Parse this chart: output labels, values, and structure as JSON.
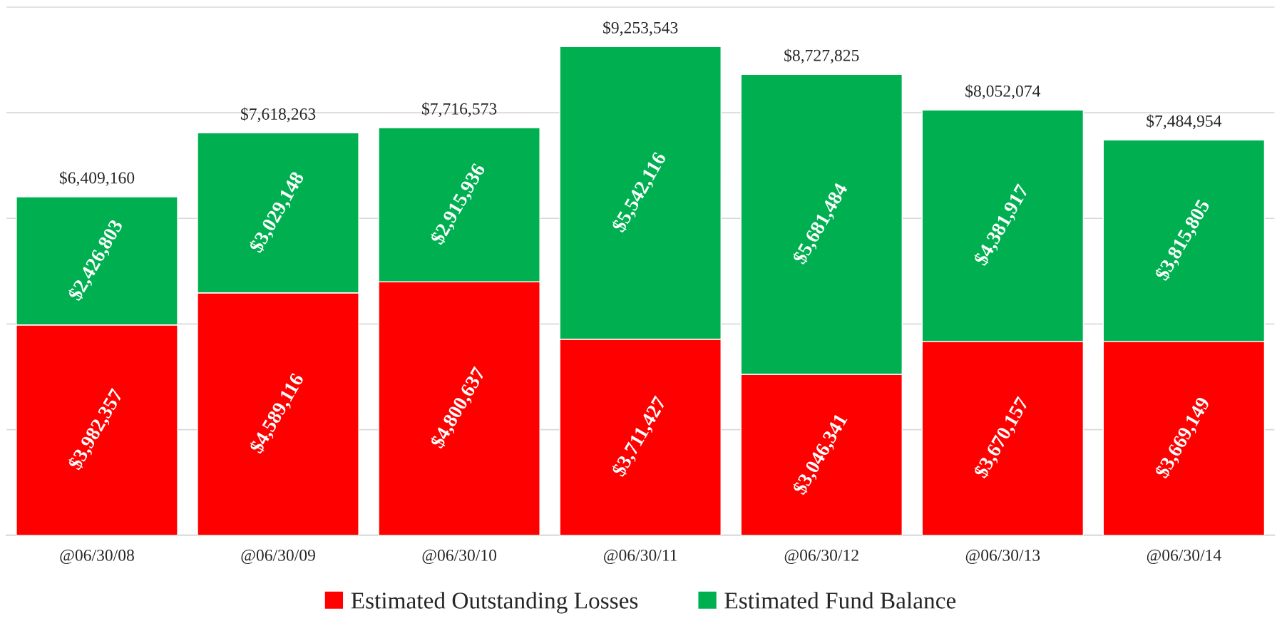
{
  "chart_data": {
    "type": "bar",
    "stacked": true,
    "categories": [
      "@06/30/08",
      "@06/30/09",
      "@06/30/10",
      "@06/30/11",
      "@06/30/12",
      "@06/30/13",
      "@06/30/14"
    ],
    "series": [
      {
        "name": "Estimated Outstanding Losses",
        "color": "#ff0000",
        "values": [
          3982357,
          4589116,
          4800637,
          3711427,
          3046341,
          3670157,
          3669149
        ],
        "value_labels": [
          "$3,982,357",
          "$4,589,116",
          "$4,800,637",
          "$3,711,427",
          "$3,046,341",
          "$3,670,157",
          "$3,669,149"
        ]
      },
      {
        "name": "Estimated Fund Balance",
        "color": "#00b050",
        "values": [
          2426803,
          3029148,
          2915936,
          5542116,
          5681484,
          4381917,
          3815805
        ],
        "value_labels": [
          "$2,426,803",
          "$3,029,148",
          "$2,915,936",
          "$5,542,116",
          "$5,681,484",
          "$4,381,917",
          "$3,815,805"
        ]
      }
    ],
    "totals": [
      "$6,409,160",
      "$7,618,263",
      "$7,716,573",
      "$9,253,543",
      "$8,727,825",
      "$8,052,074",
      "$7,484,954"
    ],
    "grid": "y",
    "tick_labels": "x",
    "legend": "bottom"
  }
}
